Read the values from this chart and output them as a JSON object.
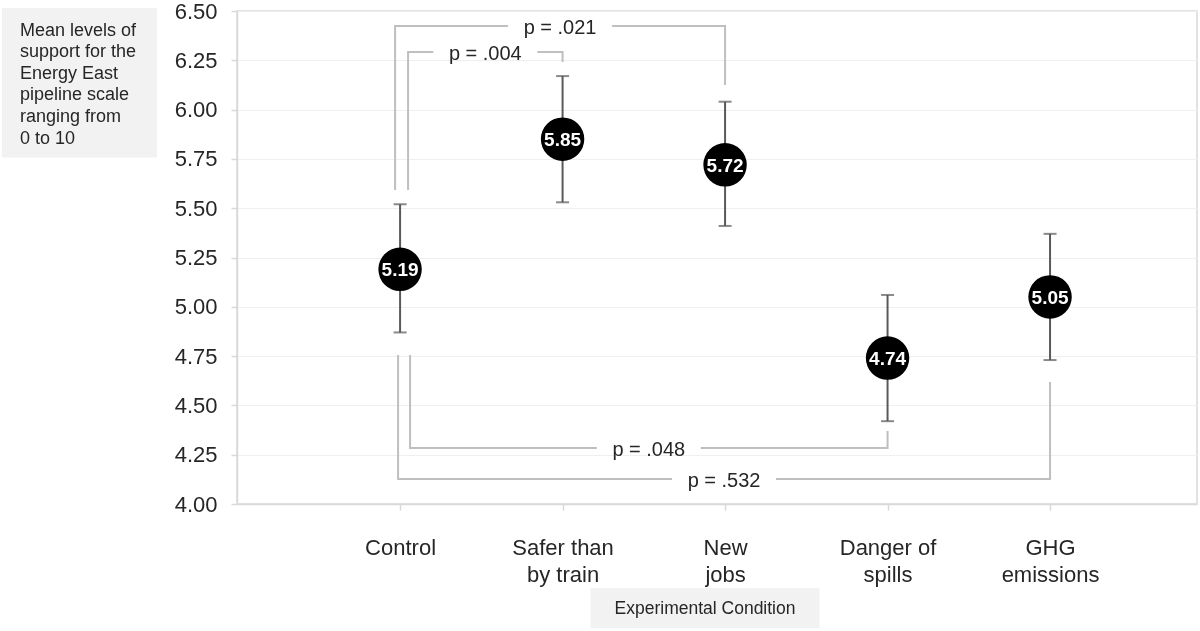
{
  "chart_data": {
    "type": "scatter",
    "ylabel": "Mean levels of\nsupport for the\nEnergy East\npipeline scale\nranging from\n0 to 10",
    "xlabel": "Experimental Condition",
    "categories": [
      "Control",
      "Safer than\nby train",
      "New\njobs",
      "Danger of\nspills",
      "GHG\nemissions"
    ],
    "values": [
      5.19,
      5.85,
      5.72,
      4.74,
      5.05
    ],
    "errors": [
      [
        4.87,
        5.52
      ],
      [
        5.53,
        6.17
      ],
      [
        5.41,
        6.04
      ],
      [
        4.42,
        5.06
      ],
      [
        4.73,
        5.37
      ]
    ],
    "color": "#000000",
    "marker": "circle",
    "data_labels": true,
    "ylim": [
      4,
      6.5
    ],
    "yticks": [
      {
        "value": 4,
        "label": "4.00"
      },
      4.25,
      {
        "value": 4.5,
        "label": "4.50"
      },
      4.75,
      {
        "value": 5,
        "label": "5.00"
      },
      5.25,
      {
        "value": 5.5,
        "label": "5.50"
      },
      5.75,
      {
        "value": 6,
        "label": "6.00"
      },
      6.25,
      {
        "value": 6.5,
        "label": "6.50"
      }
    ],
    "grid": "y",
    "annotations": [
      "p = .021",
      "p = .004",
      "p = .048",
      "p = .532"
    ]
  }
}
